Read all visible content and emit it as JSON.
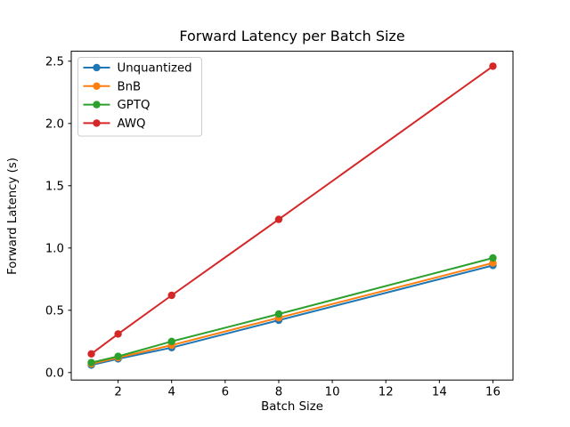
{
  "figure": {
    "title": "Forward Latency per Batch Size",
    "xlabel": "Batch Size",
    "ylabel": "Forward Latency (s)",
    "background_color": "#ffffff",
    "axes_edge_color": "#000000"
  },
  "chart_data": {
    "type": "line",
    "title": "Forward Latency per Batch Size",
    "xlabel": "Batch Size",
    "ylabel": "Forward Latency (s)",
    "x": [
      1,
      2,
      4,
      8,
      16
    ],
    "series": [
      {
        "name": "Unquantized",
        "color": "#1f77b4",
        "values": [
          0.06,
          0.11,
          0.2,
          0.42,
          0.86
        ]
      },
      {
        "name": "BnB",
        "color": "#ff7f0e",
        "values": [
          0.07,
          0.12,
          0.22,
          0.44,
          0.88
        ]
      },
      {
        "name": "GPTQ",
        "color": "#2ca02c",
        "values": [
          0.08,
          0.13,
          0.25,
          0.47,
          0.92
        ]
      },
      {
        "name": "AWQ",
        "color": "#d62728",
        "values": [
          0.15,
          0.31,
          0.62,
          1.23,
          2.46
        ]
      }
    ],
    "xticks": [
      2,
      4,
      6,
      8,
      10,
      12,
      14,
      16
    ],
    "yticks": [
      0.0,
      0.5,
      1.0,
      1.5,
      2.0,
      2.5
    ],
    "xlim": [
      0.25,
      16.75
    ],
    "ylim": [
      -0.06,
      2.58
    ],
    "legend_position": "upper left",
    "grid": false,
    "marker": "o",
    "legend_frame_color": "#cccccc"
  }
}
